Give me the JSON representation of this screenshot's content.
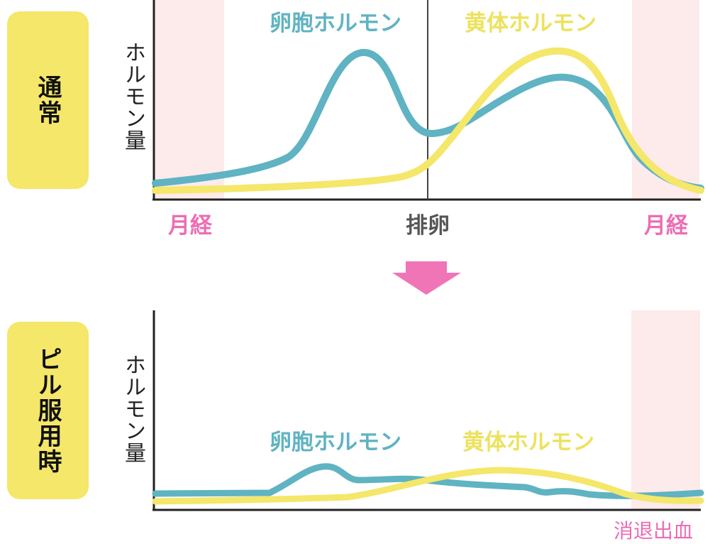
{
  "colors": {
    "follicle_hormone": "#5fb3c2",
    "corpus_luteum_hormone": "#f4e76a",
    "menstruation": "#ec6db4",
    "menstruation_shade": "#fdeaea",
    "badge": "#f4e76a",
    "arrow": "#ef75b6"
  },
  "normal": {
    "badge": "通常",
    "ylabel": "ホルモン量",
    "follicle_label": "卵胞ホルモン",
    "luteum_label": "黄体ホルモン",
    "menstruation_left": "月経",
    "ovulation": "排卵",
    "menstruation_right": "月経"
  },
  "pill": {
    "badge": "ピル服用時",
    "ylabel": "ホルモン量",
    "follicle_label": "卵胞ホルモン",
    "luteum_label": "黄体ホルモン",
    "withdrawal_bleeding": "消退出血"
  },
  "arrow_icon": "down-arrow-icon"
}
